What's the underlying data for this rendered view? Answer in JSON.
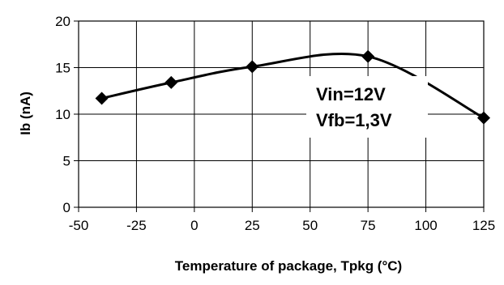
{
  "chart_data": {
    "type": "line",
    "title": "",
    "xlabel": "Temperature of package, Tpkg (°C)",
    "ylabel": "Ib (nA)",
    "xlim": [
      -50,
      125
    ],
    "ylim": [
      0,
      20
    ],
    "xticks": [
      "-50",
      "-25",
      "0",
      "25",
      "50",
      "75",
      "100",
      "125"
    ],
    "yticks": [
      "0",
      "5",
      "10",
      "15",
      "20"
    ],
    "grid": true,
    "legend": "none",
    "series": [
      {
        "x": [
          -40,
          -10,
          25,
          75,
          125
        ],
        "values": [
          11.7,
          13.4,
          15.1,
          16.2,
          9.6
        ],
        "color": "#000000",
        "marker": "diamond"
      }
    ],
    "annotation": [
      "Vin=12V",
      "Vfb=1,3V"
    ]
  }
}
